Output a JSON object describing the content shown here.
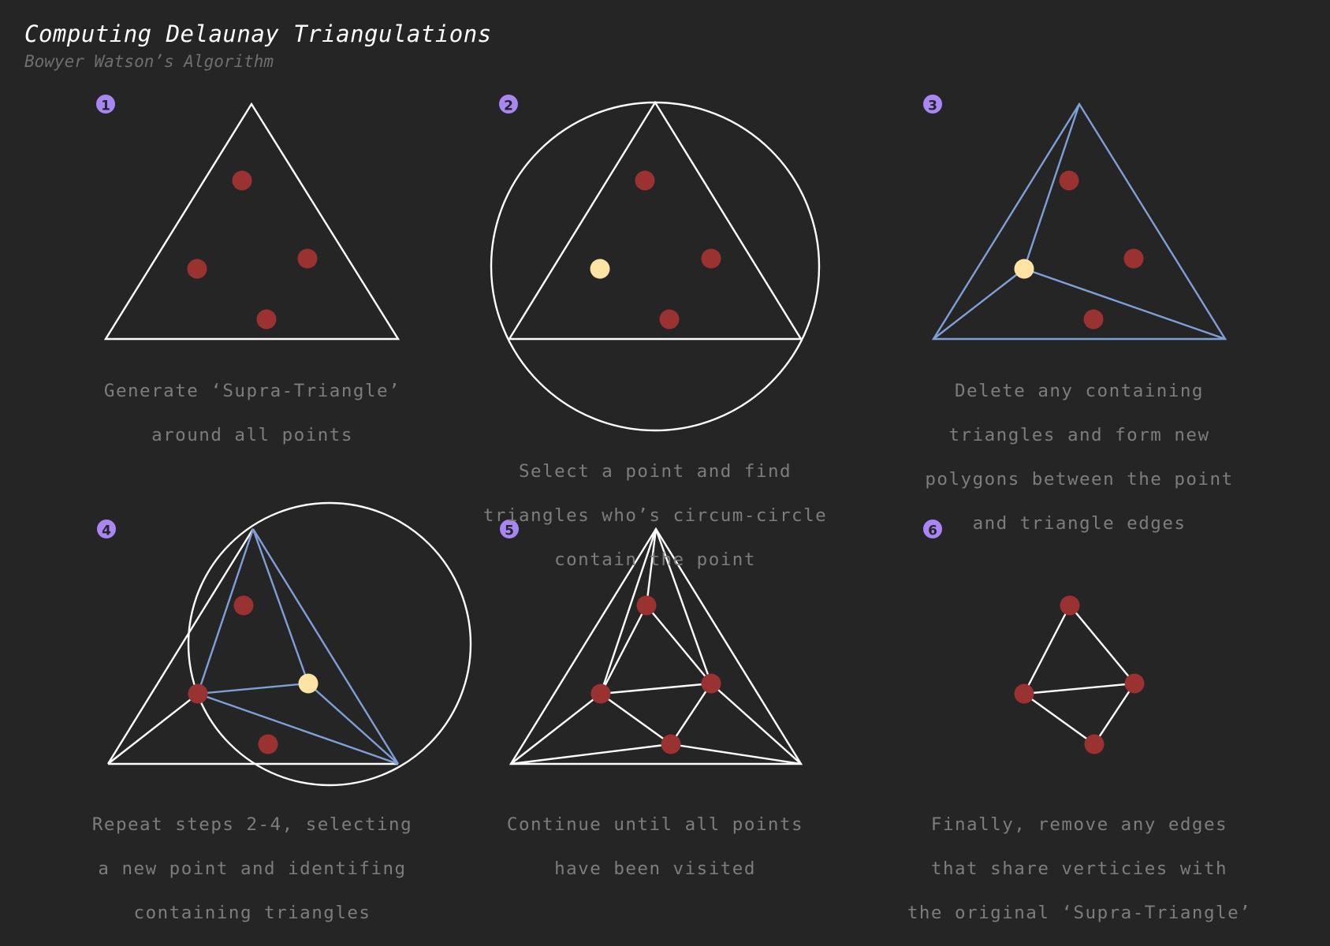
{
  "header": {
    "title": "Computing Delaunay Triangulations",
    "subtitle": "Bowyer Watson’s Algorithm"
  },
  "colors": {
    "background": "#252525",
    "line": "#ffffff",
    "highlight_line": "#7f9fd6",
    "point": "#9b3232",
    "selected_point": "#fde4a5",
    "badge": "#a987f2",
    "caption": "#7d7d7d"
  },
  "steps": [
    {
      "number": "1",
      "caption": [
        "Generate ‘Supra-Triangle’",
        "around all points"
      ]
    },
    {
      "number": "2",
      "caption": [
        "Select a point and find",
        "triangles who’s circum-circle",
        "contain the point"
      ]
    },
    {
      "number": "3",
      "caption": [
        "Delete any containing",
        "triangles and form new",
        "polygons between the point",
        "and triangle edges"
      ]
    },
    {
      "number": "4",
      "caption": [
        "Repeat steps 2-4, selecting",
        "a new point and identifing",
        "containing triangles"
      ]
    },
    {
      "number": "5",
      "caption": [
        "Continue until all points",
        "have been visited"
      ]
    },
    {
      "number": "6",
      "caption": [
        "Finally, remove any edges",
        "that share verticies with",
        "the original ‘Supra-Triangle’"
      ]
    }
  ]
}
